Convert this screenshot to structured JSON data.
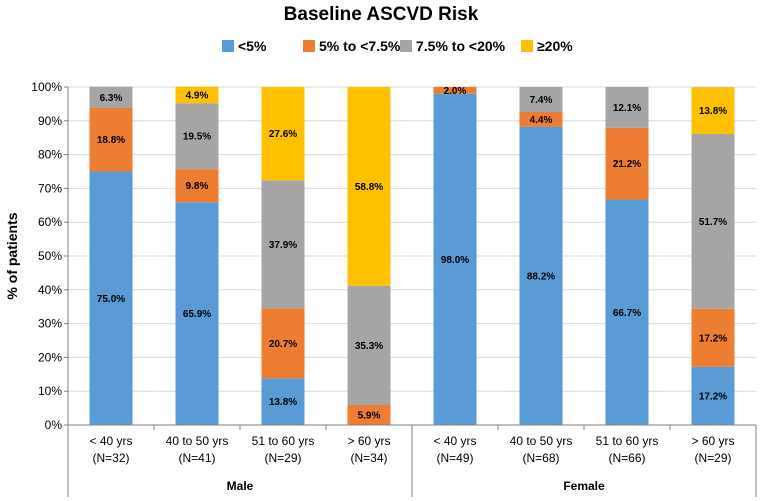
{
  "chart_data": {
    "type": "bar",
    "stacked": true,
    "title": "Baseline ASCVD Risk",
    "ylabel": "% of patients",
    "xlabel": "",
    "ylim": [
      0,
      100
    ],
    "yticks": [
      "0%",
      "10%",
      "20%",
      "30%",
      "40%",
      "50%",
      "60%",
      "70%",
      "80%",
      "90%",
      "100%"
    ],
    "legend_position": "top",
    "categories": [
      {
        "line1": "< 40 yrs",
        "line2": "(N=32)"
      },
      {
        "line1": "40 to 50 yrs",
        "line2": "(N=41)"
      },
      {
        "line1": "51 to 60 yrs",
        "line2": "(N=29)"
      },
      {
        "line1": "> 60 yrs",
        "line2": "(N=34)"
      },
      {
        "line1": "< 40 yrs",
        "line2": "(N=49)"
      },
      {
        "line1": "40 to 50 yrs",
        "line2": "(N=68)"
      },
      {
        "line1": "51 to 60 yrs",
        "line2": "(N=66)"
      },
      {
        "line1": "> 60 yrs",
        "line2": "(N=29)"
      }
    ],
    "groups": [
      {
        "name": "Male",
        "start": 0,
        "end": 3
      },
      {
        "name": "Female",
        "start": 4,
        "end": 7
      }
    ],
    "series": [
      {
        "name": "<5%",
        "color": "#5B9BD5",
        "values": [
          75.0,
          65.9,
          13.8,
          0,
          98.0,
          88.2,
          66.7,
          17.2
        ],
        "labels": [
          "75.0%",
          "65.9%",
          "13.8%",
          "",
          "98.0%",
          "88.2%",
          "66.7%",
          "17.2%"
        ]
      },
      {
        "name": "5% to <7.5%",
        "color": "#ED7D31",
        "values": [
          18.8,
          9.8,
          20.7,
          5.9,
          2.0,
          4.4,
          21.2,
          17.2
        ],
        "labels": [
          "18.8%",
          "9.8%",
          "20.7%",
          "5.9%",
          "2.0%",
          "4.4%",
          "21.2%",
          "17.2%"
        ]
      },
      {
        "name": "7.5% to <20%",
        "color": "#A5A5A5",
        "values": [
          6.3,
          19.5,
          37.9,
          35.3,
          0,
          7.4,
          12.1,
          51.7
        ],
        "labels": [
          "6.3%",
          "19.5%",
          "37.9%",
          "35.3%",
          "",
          "7.4%",
          "12.1%",
          "51.7%"
        ]
      },
      {
        "name": "≥20%",
        "color": "#FFC000",
        "values": [
          0,
          4.9,
          27.6,
          58.8,
          0,
          0,
          0,
          13.8
        ],
        "labels": [
          "",
          "4.9%",
          "27.6%",
          "58.8%",
          "",
          "",
          "",
          "13.8%"
        ]
      }
    ]
  }
}
